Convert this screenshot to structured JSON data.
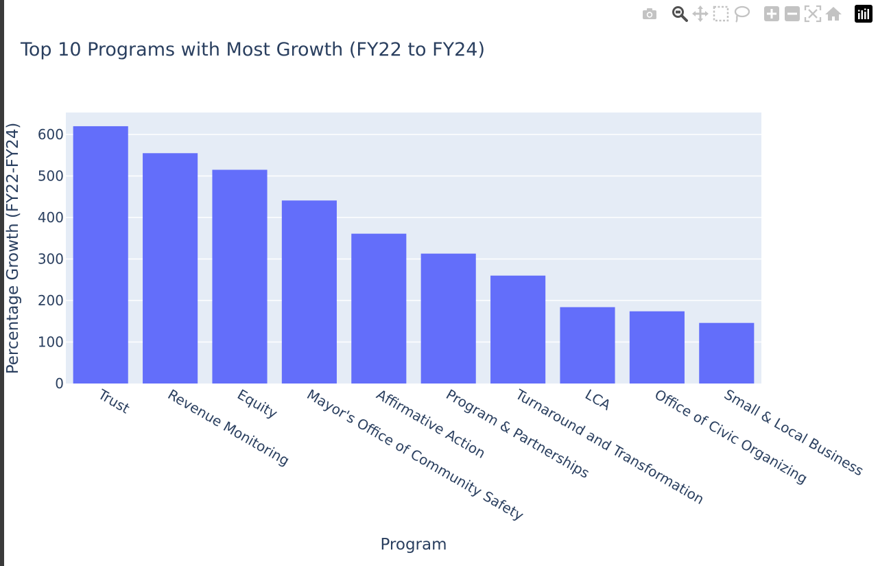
{
  "modebar": {
    "buttons": [
      "camera-icon",
      "zoom-icon",
      "pan-icon",
      "box-select-icon",
      "lasso-icon",
      "zoom-in-icon",
      "zoom-out-icon",
      "autoscale-icon",
      "reset-axes-icon",
      "plotly-logo-icon"
    ]
  },
  "colors": {
    "bar": "#636efa",
    "plot_bg": "#e5ecf6",
    "grid": "#ffffff",
    "text": "#2a3f5f",
    "modebar_icon": "#c3c3c3",
    "modebar_active": "#505050"
  },
  "chart_data": {
    "type": "bar",
    "title": "Top 10 Programs with Most Growth (FY22 to FY24)",
    "xlabel": "Program",
    "ylabel": "Percentage Growth (FY22-FY24)",
    "categories": [
      "Trust",
      "Revenue Monitoring",
      "Equity",
      "Mayor's Office of Community Safety",
      "Affirmative Action",
      "Program & Partnerships",
      "Turnaround and Transformation",
      "LCA",
      "Office of Civic Organizing",
      "Small & Local Business"
    ],
    "values": [
      620,
      555,
      515,
      441,
      361,
      313,
      260,
      184,
      174,
      146
    ],
    "ylim": [
      0,
      653
    ],
    "yticks": [
      0,
      100,
      200,
      300,
      400,
      500,
      600
    ],
    "grid": true,
    "legend": "none"
  }
}
